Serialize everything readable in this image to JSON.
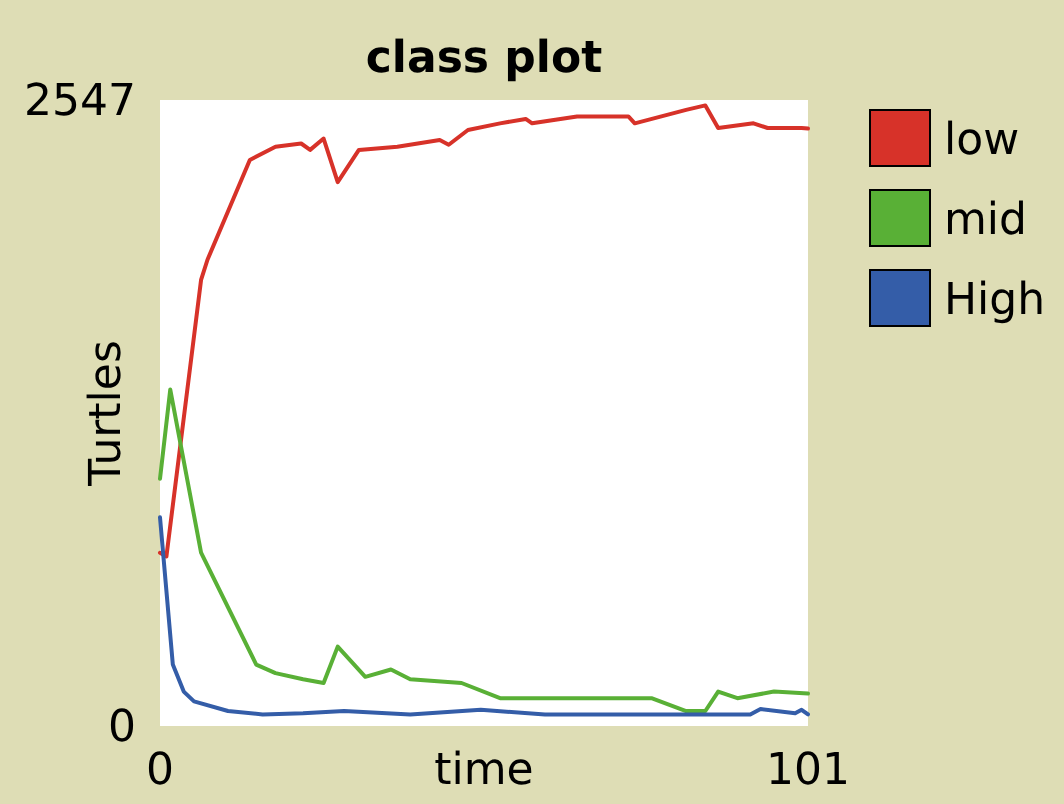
{
  "chart_data": {
    "type": "line",
    "title": "class plot",
    "xlabel": "time",
    "ylabel": "Turtles",
    "xlim": [
      0,
      101
    ],
    "ylim": [
      0,
      2547
    ],
    "xticks": [
      0,
      101
    ],
    "yticks": [
      0,
      2547
    ],
    "grid": false,
    "legend": "right",
    "series": [
      {
        "name": "low",
        "color": "#d73229",
        "x": [
          0,
          1,
          6.4,
          7.4,
          14,
          18,
          22,
          23.4,
          25.5,
          27.7,
          31,
          37,
          43.6,
          45,
          48,
          53,
          57,
          58,
          65,
          73,
          74,
          82,
          85,
          87,
          92.5,
          94.7,
          100,
          101
        ],
        "values": [
          705,
          690,
          1815,
          1897,
          2303,
          2357,
          2370,
          2344,
          2390,
          2213,
          2344,
          2357,
          2384,
          2365,
          2425,
          2452,
          2470,
          2452,
          2480,
          2480,
          2452,
          2507,
          2525,
          2433,
          2452,
          2433,
          2433,
          2431
        ]
      },
      {
        "name": "mid",
        "color": "#59b036",
        "x": [
          0,
          1.6,
          6.4,
          15,
          18,
          22.3,
          25.5,
          27.7,
          32,
          36,
          39,
          47,
          53,
          76.6,
          82,
          85,
          87,
          90,
          95.7,
          101
        ],
        "values": [
          1006,
          1369,
          705,
          250,
          215,
          190,
          175,
          323,
          200,
          230,
          190,
          175,
          113,
          113,
          61,
          61,
          140,
          113,
          140,
          132
        ]
      },
      {
        "name": "High",
        "color": "#345da8",
        "x": [
          0,
          2,
          3.7,
          5.3,
          10.6,
          16,
          22.3,
          28.7,
          39,
          50,
          60,
          92,
          93.6,
          99,
          100,
          101
        ],
        "values": [
          849,
          250,
          140,
          100,
          61,
          47,
          52,
          61,
          47,
          66,
          47,
          47,
          69,
          52,
          66,
          47
        ]
      }
    ]
  }
}
